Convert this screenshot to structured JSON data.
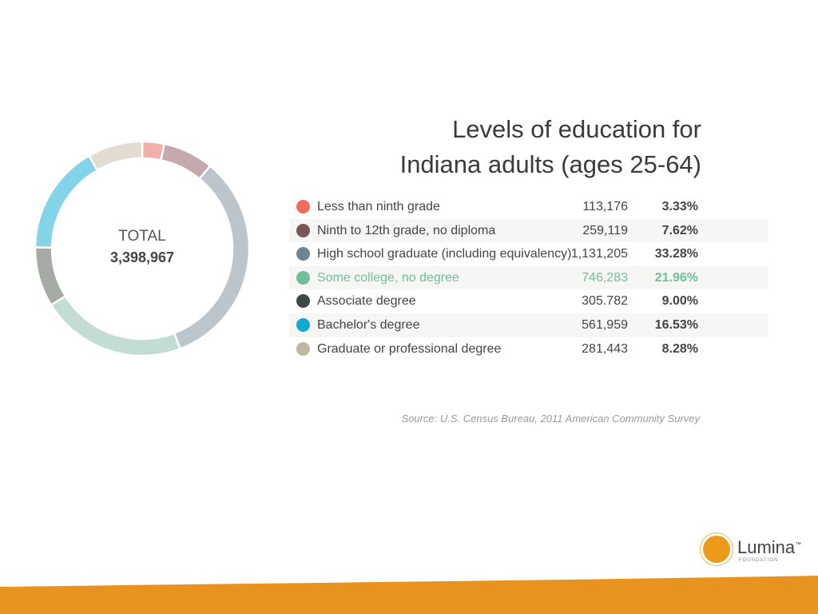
{
  "chart_data": {
    "type": "pie",
    "title_line1": "Levels of education for",
    "title_line2": "Indiana adults (ages 25-64)",
    "center_label": "TOTAL",
    "center_value": "3,398,967",
    "categories": [
      "Less than ninth grade",
      "Ninth to 12th grade, no diploma",
      "High school graduate (including equivalency)",
      "Some college, no degree",
      "Associate degree",
      "Bachelor's degree",
      "Graduate or professional degree"
    ],
    "counts": [
      "113,176",
      "259,119",
      "1,131,205",
      "746,283",
      "305.782",
      "561,959",
      "281,443"
    ],
    "percent_labels": [
      "3.33%",
      "7.62%",
      "33.28%",
      "21.96%",
      "9.00%",
      "16.53%",
      "8.28%"
    ],
    "values": [
      3.33,
      7.62,
      33.28,
      21.96,
      9.0,
      16.53,
      8.28
    ],
    "legend_colors": [
      "#ee6b5e",
      "#7a5658",
      "#6f8391",
      "#6fbf9c",
      "#3f4742",
      "#13a8d0",
      "#c0b6a4"
    ],
    "slice_colors": [
      "#f2b0ab",
      "#c4aaad",
      "#bcc5cc",
      "#c3ddd3",
      "#a5aaa5",
      "#84d4e9",
      "#e2dcd1"
    ],
    "highlight_index": 3,
    "source": "Source: U.S. Census Bureau, 2011 American Community Survey"
  },
  "logo": {
    "name": "Lumina",
    "trademark": "™",
    "sub": "FOUNDATION",
    "color": "#ed9a1c"
  },
  "footer_color": "#e8921f"
}
